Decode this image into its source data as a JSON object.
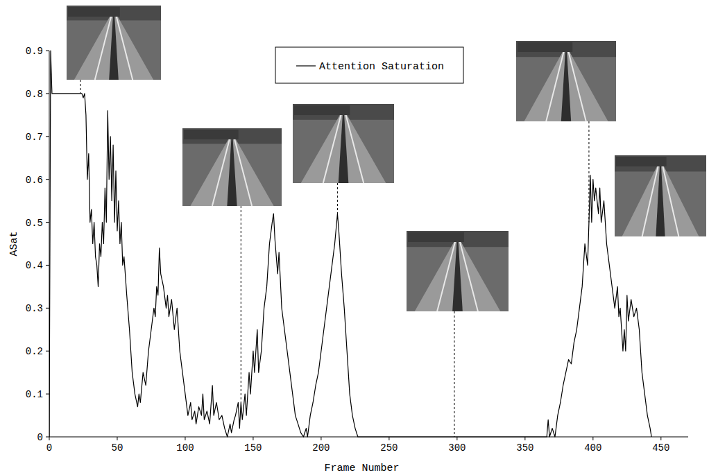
{
  "chart_data": {
    "type": "line",
    "x_label": "Frame Number",
    "y_label": "ASat",
    "xlim": [
      0,
      470
    ],
    "ylim": [
      0,
      0.9
    ],
    "xticks": [
      0,
      50,
      100,
      150,
      200,
      250,
      300,
      350,
      400,
      450
    ],
    "yticks": [
      0,
      0.1,
      0.2,
      0.3,
      0.4,
      0.5,
      0.6,
      0.7,
      0.8,
      0.9
    ],
    "grid": false,
    "legend": "top",
    "snapshots": [
      23,
      141,
      212,
      298,
      397
    ],
    "x": [
      0,
      1,
      2,
      24,
      25,
      26,
      27,
      28,
      29,
      30,
      31,
      32,
      33,
      34,
      35,
      36,
      37,
      38,
      39,
      40,
      41,
      42,
      43,
      44,
      45,
      46,
      47,
      48,
      49,
      50,
      51,
      52,
      53,
      54,
      55,
      57,
      59,
      61,
      63,
      65,
      66,
      67,
      69,
      71,
      73,
      75,
      77,
      78,
      79,
      80,
      81,
      82,
      84,
      86,
      87,
      88,
      90,
      92,
      94,
      96,
      98,
      100,
      102,
      104,
      105,
      107,
      108,
      110,
      112,
      113,
      114,
      116,
      118,
      120,
      121,
      123,
      125,
      127,
      129,
      131,
      133,
      134,
      136,
      137,
      139,
      140,
      141,
      142,
      144,
      145,
      147,
      148,
      150,
      151,
      153,
      154,
      156,
      158,
      160,
      162,
      164,
      165,
      166,
      168,
      169,
      171,
      173,
      175,
      177,
      179,
      181,
      183,
      185,
      187,
      189,
      190,
      192,
      194,
      196,
      198,
      200,
      202,
      204,
      206,
      208,
      210,
      212,
      213,
      215,
      217,
      219,
      221,
      223,
      225,
      227,
      366,
      367,
      368,
      370,
      372,
      374,
      376,
      378,
      380,
      382,
      384,
      386,
      388,
      390,
      392,
      394,
      396,
      397,
      398,
      399,
      400,
      401,
      402,
      404,
      405,
      406,
      408,
      410,
      412,
      414,
      416,
      418,
      419,
      420,
      421,
      422,
      423,
      424,
      425,
      426,
      428,
      430,
      432,
      434,
      436,
      438,
      440,
      442,
      443
    ],
    "series": [
      {
        "name": "Attention Saturation",
        "color": "#000000",
        "line_style": "solid",
        "values": [
          0,
          0.9,
          0.8,
          0.8,
          0.79,
          0.8,
          0.75,
          0.6,
          0.66,
          0.5,
          0.53,
          0.45,
          0.5,
          0.42,
          0.4,
          0.35,
          0.45,
          0.42,
          0.5,
          0.45,
          0.58,
          0.5,
          0.76,
          0.6,
          0.7,
          0.55,
          0.68,
          0.5,
          0.62,
          0.48,
          0.55,
          0.45,
          0.5,
          0.4,
          0.42,
          0.33,
          0.25,
          0.15,
          0.1,
          0.07,
          0.1,
          0.08,
          0.15,
          0.12,
          0.2,
          0.25,
          0.3,
          0.28,
          0.35,
          0.33,
          0.44,
          0.38,
          0.35,
          0.3,
          0.33,
          0.28,
          0.32,
          0.25,
          0.3,
          0.2,
          0.15,
          0.1,
          0.05,
          0.08,
          0.04,
          0.06,
          0.03,
          0.07,
          0.05,
          0.1,
          0.04,
          0.06,
          0.03,
          0.12,
          0.05,
          0.08,
          0.04,
          0.05,
          0.02,
          0,
          0.03,
          0.01,
          0.04,
          0.05,
          0.08,
          0.02,
          0.08,
          0.04,
          0.1,
          0.05,
          0.15,
          0.1,
          0.2,
          0.15,
          0.25,
          0.15,
          0.2,
          0.3,
          0.35,
          0.45,
          0.5,
          0.52,
          0.46,
          0.38,
          0.43,
          0.3,
          0.25,
          0.2,
          0.15,
          0.1,
          0.05,
          0.03,
          0.01,
          0,
          0.02,
          0,
          0.05,
          0.08,
          0.12,
          0.15,
          0.2,
          0.25,
          0.3,
          0.35,
          0.4,
          0.45,
          0.52,
          0.48,
          0.38,
          0.3,
          0.2,
          0.1,
          0.05,
          0.02,
          0,
          0,
          0.04,
          0,
          0.02,
          0,
          0.05,
          0.08,
          0.12,
          0.15,
          0.18,
          0.17,
          0.22,
          0.25,
          0.3,
          0.35,
          0.45,
          0.4,
          0.5,
          0.61,
          0.5,
          0.6,
          0.55,
          0.58,
          0.52,
          0.58,
          0.5,
          0.55,
          0.45,
          0.4,
          0.35,
          0.3,
          0.35,
          0.28,
          0.3,
          0.25,
          0.2,
          0.25,
          0.2,
          0.33,
          0.27,
          0.32,
          0.28,
          0.3,
          0.25,
          0.15,
          0.1,
          0.05,
          0.02,
          0
        ]
      }
    ]
  }
}
